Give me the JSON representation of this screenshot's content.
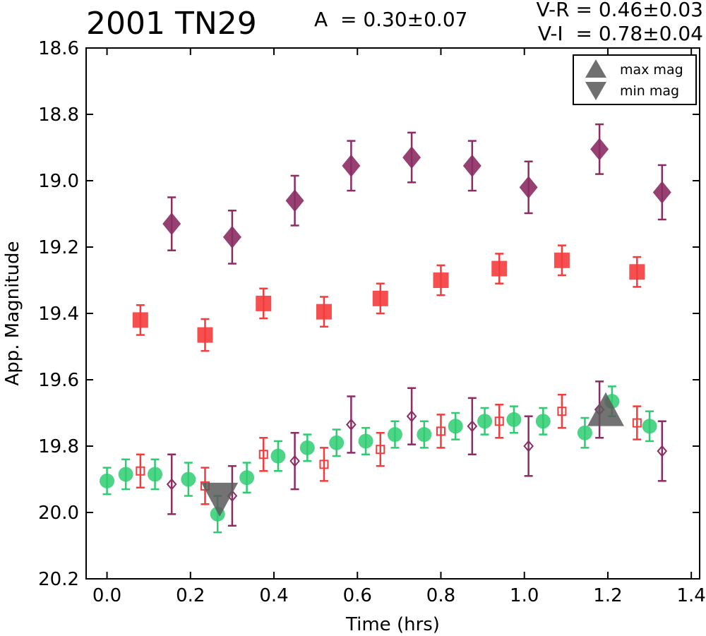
{
  "header": {
    "title": "2001 TN29",
    "amplitude": "A  = 0.30±0.07",
    "v_r": "V-R = 0.46±0.03",
    "v_i": "V-I  = 0.78±0.04"
  },
  "chart_data": {
    "type": "scatter",
    "title": "2001 TN29",
    "xlabel": "Time (hrs)",
    "ylabel": "App. Magnitude",
    "xlim": [
      -0.05,
      1.42
    ],
    "ylim": [
      20.2,
      18.6
    ],
    "y_inverted": true,
    "grid": false,
    "legend_position": "top-right",
    "x_ticks": [
      "0.0",
      "0.2",
      "0.4",
      "0.6",
      "0.8",
      "1.0",
      "1.2",
      "1.4"
    ],
    "y_ticks": [
      "18.6",
      "18.8",
      "19.0",
      "19.2",
      "19.4",
      "19.6",
      "19.8",
      "20.0",
      "20.2"
    ],
    "legend": [
      {
        "label": "max mag",
        "marker": "triangle-up",
        "color": "#707070"
      },
      {
        "label": "min mag",
        "marker": "triangle-down",
        "color": "#707070"
      }
    ],
    "series": [
      {
        "marker": "diamond-filled",
        "color": "#8b2c63",
        "points": [
          {
            "x": 0.155,
            "y": 19.13,
            "err": 0.08
          },
          {
            "x": 0.3,
            "y": 19.17,
            "err": 0.08
          },
          {
            "x": 0.45,
            "y": 19.06,
            "err": 0.075
          },
          {
            "x": 0.585,
            "y": 18.955,
            "err": 0.075
          },
          {
            "x": 0.73,
            "y": 18.93,
            "err": 0.075
          },
          {
            "x": 0.875,
            "y": 18.955,
            "err": 0.075
          },
          {
            "x": 1.01,
            "y": 19.02,
            "err": 0.078
          },
          {
            "x": 1.18,
            "y": 18.905,
            "err": 0.075
          },
          {
            "x": 1.33,
            "y": 19.035,
            "err": 0.082
          }
        ]
      },
      {
        "marker": "square-filled",
        "color": "#f43c3c",
        "points": [
          {
            "x": 0.08,
            "y": 19.42,
            "err": 0.045
          },
          {
            "x": 0.235,
            "y": 19.465,
            "err": 0.048
          },
          {
            "x": 0.375,
            "y": 19.37,
            "err": 0.045
          },
          {
            "x": 0.52,
            "y": 19.395,
            "err": 0.045
          },
          {
            "x": 0.655,
            "y": 19.355,
            "err": 0.045
          },
          {
            "x": 0.8,
            "y": 19.3,
            "err": 0.045
          },
          {
            "x": 0.94,
            "y": 19.265,
            "err": 0.045
          },
          {
            "x": 1.09,
            "y": 19.24,
            "err": 0.045
          },
          {
            "x": 1.27,
            "y": 19.275,
            "err": 0.045
          }
        ]
      },
      {
        "marker": "circle-filled",
        "color": "#2ecc71",
        "points": [
          {
            "x": 0.0,
            "y": 19.905,
            "err": 0.04
          },
          {
            "x": 0.045,
            "y": 19.885,
            "err": 0.045
          },
          {
            "x": 0.115,
            "y": 19.885,
            "err": 0.045
          },
          {
            "x": 0.195,
            "y": 19.9,
            "err": 0.05
          },
          {
            "x": 0.265,
            "y": 20.005,
            "err": 0.055
          },
          {
            "x": 0.335,
            "y": 19.895,
            "err": 0.045
          },
          {
            "x": 0.41,
            "y": 19.83,
            "err": 0.045
          },
          {
            "x": 0.48,
            "y": 19.805,
            "err": 0.04
          },
          {
            "x": 0.55,
            "y": 19.79,
            "err": 0.04
          },
          {
            "x": 0.62,
            "y": 19.785,
            "err": 0.04
          },
          {
            "x": 0.69,
            "y": 19.765,
            "err": 0.04
          },
          {
            "x": 0.76,
            "y": 19.765,
            "err": 0.04
          },
          {
            "x": 0.835,
            "y": 19.74,
            "err": 0.04
          },
          {
            "x": 0.905,
            "y": 19.725,
            "err": 0.04
          },
          {
            "x": 0.975,
            "y": 19.72,
            "err": 0.04
          },
          {
            "x": 1.045,
            "y": 19.725,
            "err": 0.04
          },
          {
            "x": 1.145,
            "y": 19.76,
            "err": 0.045
          },
          {
            "x": 1.21,
            "y": 19.665,
            "err": 0.045
          },
          {
            "x": 1.3,
            "y": 19.74,
            "err": 0.045
          }
        ]
      },
      {
        "marker": "square-open",
        "color": "#f43c3c",
        "points": [
          {
            "x": 0.08,
            "y": 19.875,
            "err": 0.05
          },
          {
            "x": 0.235,
            "y": 19.92,
            "err": 0.055
          },
          {
            "x": 0.375,
            "y": 19.825,
            "err": 0.05
          },
          {
            "x": 0.52,
            "y": 19.855,
            "err": 0.05
          },
          {
            "x": 0.655,
            "y": 19.81,
            "err": 0.05
          },
          {
            "x": 0.8,
            "y": 19.755,
            "err": 0.05
          },
          {
            "x": 0.94,
            "y": 19.725,
            "err": 0.05
          },
          {
            "x": 1.09,
            "y": 19.695,
            "err": 0.05
          },
          {
            "x": 1.27,
            "y": 19.73,
            "err": 0.05
          }
        ]
      },
      {
        "marker": "diamond-open",
        "color": "#8b2c63",
        "points": [
          {
            "x": 0.155,
            "y": 19.915,
            "err": 0.09
          },
          {
            "x": 0.3,
            "y": 19.95,
            "err": 0.09
          },
          {
            "x": 0.45,
            "y": 19.845,
            "err": 0.085
          },
          {
            "x": 0.585,
            "y": 19.735,
            "err": 0.085
          },
          {
            "x": 0.73,
            "y": 19.71,
            "err": 0.085
          },
          {
            "x": 0.875,
            "y": 19.74,
            "err": 0.085
          },
          {
            "x": 1.01,
            "y": 19.8,
            "err": 0.09
          },
          {
            "x": 1.18,
            "y": 19.69,
            "err": 0.085
          },
          {
            "x": 1.33,
            "y": 19.815,
            "err": 0.09
          }
        ]
      }
    ],
    "extrema": [
      {
        "label": "min mag",
        "marker": "triangle-down",
        "x": 0.27,
        "y": 19.955
      },
      {
        "label": "max mag",
        "marker": "triangle-up",
        "x": 1.195,
        "y": 19.695
      }
    ]
  }
}
